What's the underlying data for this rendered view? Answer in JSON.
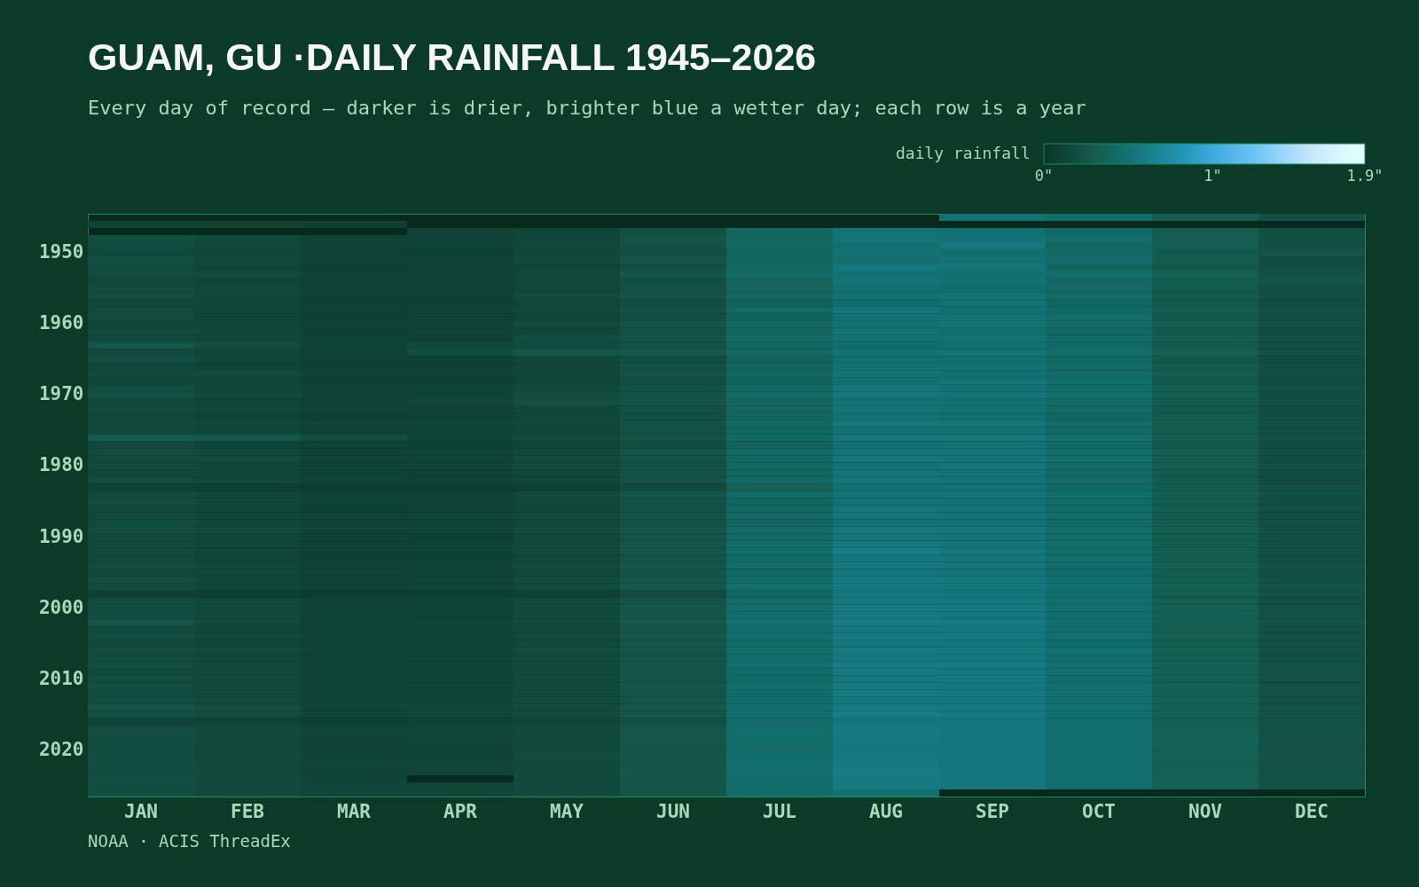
{
  "chart_data": {
    "type": "heatmap",
    "title": "GUAM, GU ·DAILY RAINFALL 1945–2026",
    "subtitle": "Every day of record — darker is drier, brighter blue a wetter day; each row is a year",
    "clabel": "daily rainfall",
    "annotations": [
      "NOAA · ACIS ThreadEx"
    ],
    "categories": [
      "JAN",
      "FEB",
      "MAR",
      "APR",
      "MAY",
      "JUN",
      "JUL",
      "AUG",
      "SEP",
      "OCT",
      "NOV",
      "DEC"
    ],
    "y_categories": [
      null,
      null,
      null,
      null,
      null,
      "1950",
      null,
      null,
      null,
      null,
      null,
      null,
      null,
      null,
      null,
      "1960",
      null,
      null,
      null,
      null,
      null,
      null,
      null,
      null,
      null,
      "1970",
      null,
      null,
      null,
      null,
      null,
      null,
      null,
      null,
      null,
      "1980",
      null,
      null,
      null,
      null,
      null,
      null,
      null,
      null,
      null,
      "1990",
      null,
      null,
      null,
      null,
      null,
      null,
      null,
      null,
      null,
      "2000",
      null,
      null,
      null,
      null,
      null,
      null,
      null,
      null,
      null,
      "2010",
      null,
      null,
      null,
      null,
      null,
      null,
      null,
      null,
      null,
      "2020",
      null,
      null,
      null,
      null,
      null,
      null
    ],
    "clim": [
      0,
      1.9
    ],
    "cticks": [
      {
        "value": 0,
        "label": "0\""
      },
      {
        "value": 1,
        "label": "1\""
      },
      {
        "value": 1.9,
        "label": "1.9\""
      }
    ],
    "cells": [
      [
        null,
        null,
        null,
        null,
        null,
        null,
        null,
        null,
        0.5,
        0.45,
        0.3,
        0.22
      ],
      [
        0.12,
        0.1,
        0.08,
        null,
        null,
        null,
        null,
        null,
        null,
        null,
        null,
        null
      ],
      [
        null,
        null,
        null,
        0.1,
        0.14,
        0.2,
        0.38,
        0.5,
        0.48,
        0.4,
        0.3,
        0.2
      ],
      [
        0.2,
        0.16,
        0.12,
        0.1,
        0.13,
        0.25,
        0.4,
        0.52,
        0.5,
        0.45,
        0.3,
        0.22
      ],
      [
        0.18,
        0.14,
        0.1,
        0.12,
        0.15,
        0.22,
        0.42,
        0.48,
        0.55,
        0.4,
        0.32,
        0.2
      ],
      [
        0.15,
        0.13,
        0.1,
        0.09,
        0.14,
        0.2,
        0.36,
        0.5,
        0.46,
        0.42,
        0.28,
        0.24
      ],
      [
        0.2,
        0.15,
        0.12,
        0.1,
        0.16,
        0.24,
        0.38,
        0.45,
        0.5,
        0.44,
        0.3,
        0.18
      ],
      [
        0.16,
        0.12,
        0.09,
        0.11,
        0.12,
        0.2,
        0.4,
        0.55,
        0.52,
        0.38,
        0.26,
        0.2
      ],
      [
        0.18,
        0.17,
        0.11,
        0.1,
        0.14,
        0.26,
        0.44,
        0.5,
        0.48,
        0.46,
        0.34,
        0.22
      ],
      [
        0.14,
        0.12,
        0.1,
        0.12,
        0.15,
        0.2,
        0.35,
        0.52,
        0.5,
        0.4,
        0.3,
        0.25
      ],
      [
        0.17,
        0.14,
        0.12,
        0.1,
        0.13,
        0.22,
        0.38,
        0.48,
        0.45,
        0.42,
        0.28,
        0.2
      ],
      [
        0.19,
        0.15,
        0.1,
        0.11,
        0.16,
        0.24,
        0.4,
        0.5,
        0.52,
        0.44,
        0.3,
        0.21
      ],
      [
        0.15,
        0.13,
        0.09,
        0.1,
        0.14,
        0.2,
        0.36,
        0.46,
        0.5,
        0.4,
        0.27,
        0.18
      ],
      [
        0.16,
        0.14,
        0.11,
        0.12,
        0.15,
        0.23,
        0.42,
        0.54,
        0.48,
        0.42,
        0.32,
        0.22
      ],
      [
        0.18,
        0.12,
        0.1,
        0.1,
        0.13,
        0.21,
        0.37,
        0.5,
        0.5,
        0.45,
        0.29,
        0.2
      ],
      [
        0.14,
        0.13,
        0.11,
        0.11,
        0.17,
        0.25,
        0.4,
        0.48,
        0.52,
        0.44,
        0.31,
        0.21
      ],
      [
        0.17,
        0.15,
        0.1,
        0.12,
        0.14,
        0.22,
        0.38,
        0.52,
        0.47,
        0.41,
        0.28,
        0.19
      ],
      [
        0.15,
        0.14,
        0.12,
        0.1,
        0.2,
        0.24,
        0.42,
        0.5,
        0.5,
        0.43,
        0.3,
        0.22
      ],
      [
        0.26,
        0.2,
        0.12,
        0.16,
        0.18,
        0.22,
        0.4,
        0.46,
        0.48,
        0.42,
        0.29,
        0.2
      ],
      [
        0.16,
        0.13,
        0.1,
        0.2,
        0.26,
        0.28,
        0.42,
        0.5,
        0.52,
        0.46,
        0.33,
        0.22
      ],
      [
        0.2,
        0.15,
        0.11,
        0.1,
        0.14,
        0.2,
        0.36,
        0.48,
        0.46,
        0.4,
        0.27,
        0.19
      ],
      [
        0.15,
        0.12,
        0.1,
        0.1,
        0.13,
        0.22,
        0.38,
        0.5,
        0.5,
        0.44,
        0.3,
        0.2
      ],
      [
        0.17,
        0.16,
        0.12,
        0.11,
        0.15,
        0.24,
        0.4,
        0.52,
        0.48,
        0.42,
        0.31,
        0.21
      ],
      [
        0.14,
        0.12,
        0.09,
        0.1,
        0.13,
        0.2,
        0.37,
        0.47,
        0.52,
        0.46,
        0.29,
        0.18
      ],
      [
        0.18,
        0.14,
        0.11,
        0.12,
        0.16,
        0.23,
        0.41,
        0.53,
        0.5,
        0.43,
        0.3,
        0.22
      ],
      [
        0.22,
        0.16,
        0.11,
        0.12,
        0.18,
        0.24,
        0.42,
        0.55,
        0.52,
        0.45,
        0.32,
        0.2
      ],
      [
        0.16,
        0.13,
        0.1,
        0.14,
        0.22,
        0.25,
        0.4,
        0.5,
        0.48,
        0.44,
        0.3,
        0.21
      ],
      [
        0.18,
        0.15,
        0.12,
        0.11,
        0.15,
        0.22,
        0.38,
        0.52,
        0.5,
        0.42,
        0.28,
        0.19
      ],
      [
        0.15,
        0.12,
        0.09,
        0.1,
        0.14,
        0.21,
        0.39,
        0.5,
        0.47,
        0.4,
        0.29,
        0.2
      ],
      [
        0.17,
        0.14,
        0.13,
        0.12,
        0.15,
        0.23,
        0.42,
        0.56,
        0.52,
        0.44,
        0.31,
        0.22
      ],
      [
        0.16,
        0.13,
        0.1,
        0.11,
        0.14,
        0.22,
        0.4,
        0.5,
        0.5,
        0.43,
        0.3,
        0.2
      ],
      [
        0.3,
        0.26,
        0.2,
        0.12,
        0.16,
        0.24,
        0.43,
        0.55,
        0.54,
        0.46,
        0.32,
        0.22
      ],
      [
        0.15,
        0.12,
        0.1,
        0.1,
        0.13,
        0.2,
        0.36,
        0.48,
        0.5,
        0.42,
        0.28,
        0.19
      ],
      [
        0.18,
        0.15,
        0.11,
        0.12,
        0.15,
        0.25,
        0.42,
        0.52,
        0.52,
        0.45,
        0.31,
        0.21
      ],
      [
        0.16,
        0.17,
        0.12,
        0.11,
        0.17,
        0.24,
        0.4,
        0.55,
        0.53,
        0.46,
        0.3,
        0.2
      ],
      [
        0.17,
        0.14,
        0.11,
        0.13,
        0.16,
        0.23,
        0.41,
        0.5,
        0.55,
        0.44,
        0.32,
        0.22
      ],
      [
        0.15,
        0.13,
        0.1,
        0.1,
        0.14,
        0.22,
        0.38,
        0.52,
        0.5,
        0.42,
        0.29,
        0.19
      ],
      [
        0.18,
        0.15,
        0.12,
        0.11,
        0.15,
        0.24,
        0.42,
        0.54,
        0.52,
        0.45,
        0.3,
        0.18
      ],
      [
        0.1,
        0.08,
        0.06,
        0.07,
        0.09,
        0.16,
        0.34,
        0.48,
        0.5,
        0.42,
        0.3,
        0.21
      ],
      [
        0.17,
        0.14,
        0.11,
        0.12,
        0.16,
        0.25,
        0.43,
        0.52,
        0.53,
        0.46,
        0.32,
        0.22
      ],
      [
        0.19,
        0.15,
        0.12,
        0.11,
        0.15,
        0.23,
        0.4,
        0.5,
        0.5,
        0.44,
        0.3,
        0.2
      ],
      [
        0.16,
        0.13,
        0.1,
        0.11,
        0.14,
        0.22,
        0.41,
        0.55,
        0.52,
        0.43,
        0.31,
        0.21
      ],
      [
        0.15,
        0.14,
        0.11,
        0.12,
        0.16,
        0.24,
        0.42,
        0.53,
        0.51,
        0.45,
        0.29,
        0.2
      ],
      [
        0.17,
        0.15,
        0.11,
        0.11,
        0.15,
        0.23,
        0.39,
        0.5,
        0.5,
        0.42,
        0.3,
        0.21
      ],
      [
        0.2,
        0.16,
        0.12,
        0.12,
        0.17,
        0.26,
        0.44,
        0.56,
        0.54,
        0.46,
        0.32,
        0.22
      ],
      [
        0.18,
        0.14,
        0.11,
        0.1,
        0.15,
        0.24,
        0.42,
        0.55,
        0.53,
        0.44,
        0.31,
        0.21
      ],
      [
        0.16,
        0.13,
        0.1,
        0.11,
        0.15,
        0.25,
        0.44,
        0.56,
        0.52,
        0.45,
        0.3,
        0.2
      ],
      [
        0.17,
        0.14,
        0.11,
        0.12,
        0.16,
        0.26,
        0.46,
        0.6,
        0.55,
        0.46,
        0.32,
        0.22
      ],
      [
        0.15,
        0.12,
        0.1,
        0.1,
        0.14,
        0.24,
        0.43,
        0.54,
        0.54,
        0.47,
        0.3,
        0.2
      ],
      [
        0.18,
        0.15,
        0.11,
        0.12,
        0.16,
        0.27,
        0.45,
        0.58,
        0.55,
        0.46,
        0.33,
        0.23
      ],
      [
        0.16,
        0.14,
        0.12,
        0.11,
        0.15,
        0.25,
        0.42,
        0.55,
        0.52,
        0.44,
        0.3,
        0.21
      ],
      [
        0.19,
        0.15,
        0.11,
        0.12,
        0.17,
        0.26,
        0.44,
        0.57,
        0.56,
        0.47,
        0.32,
        0.22
      ],
      [
        0.17,
        0.14,
        0.11,
        0.13,
        0.16,
        0.28,
        0.46,
        0.58,
        0.55,
        0.48,
        0.34,
        0.24
      ],
      [
        0.09,
        0.07,
        0.06,
        0.07,
        0.1,
        0.18,
        0.4,
        0.55,
        0.53,
        0.45,
        0.31,
        0.22
      ],
      [
        0.18,
        0.15,
        0.11,
        0.12,
        0.16,
        0.25,
        0.44,
        0.56,
        0.54,
        0.46,
        0.32,
        0.21
      ],
      [
        0.2,
        0.16,
        0.12,
        0.12,
        0.17,
        0.27,
        0.45,
        0.58,
        0.56,
        0.47,
        0.33,
        0.23
      ],
      [
        0.19,
        0.15,
        0.11,
        0.11,
        0.16,
        0.26,
        0.46,
        0.57,
        0.55,
        0.46,
        0.34,
        0.22
      ],
      [
        0.24,
        0.17,
        0.12,
        0.13,
        0.17,
        0.27,
        0.47,
        0.6,
        0.57,
        0.48,
        0.33,
        0.24
      ],
      [
        0.17,
        0.14,
        0.11,
        0.12,
        0.15,
        0.25,
        0.44,
        0.56,
        0.55,
        0.46,
        0.31,
        0.21
      ],
      [
        0.18,
        0.15,
        0.12,
        0.12,
        0.16,
        0.27,
        0.46,
        0.58,
        0.56,
        0.47,
        0.33,
        0.23
      ],
      [
        0.16,
        0.13,
        0.1,
        0.11,
        0.15,
        0.25,
        0.44,
        0.55,
        0.54,
        0.45,
        0.31,
        0.21
      ],
      [
        0.19,
        0.16,
        0.12,
        0.12,
        0.17,
        0.26,
        0.45,
        0.57,
        0.56,
        0.48,
        0.34,
        0.22
      ],
      [
        0.18,
        0.14,
        0.11,
        0.12,
        0.16,
        0.25,
        0.44,
        0.56,
        0.55,
        0.46,
        0.32,
        0.21
      ],
      [
        0.2,
        0.16,
        0.12,
        0.13,
        0.17,
        0.27,
        0.46,
        0.58,
        0.57,
        0.47,
        0.33,
        0.23
      ],
      [
        0.17,
        0.15,
        0.11,
        0.12,
        0.16,
        0.26,
        0.45,
        0.57,
        0.55,
        0.47,
        0.32,
        0.22
      ],
      [
        0.19,
        0.16,
        0.12,
        0.12,
        0.17,
        0.25,
        0.44,
        0.56,
        0.56,
        0.46,
        0.33,
        0.22
      ],
      [
        0.2,
        0.15,
        0.12,
        0.13,
        0.16,
        0.27,
        0.46,
        0.58,
        0.55,
        0.48,
        0.34,
        0.23
      ],
      [
        0.18,
        0.16,
        0.11,
        0.12,
        0.17,
        0.26,
        0.45,
        0.57,
        0.56,
        0.47,
        0.32,
        0.22
      ],
      [
        0.19,
        0.15,
        0.12,
        0.12,
        0.16,
        0.25,
        0.45,
        0.56,
        0.55,
        0.46,
        0.33,
        0.21
      ],
      [
        0.24,
        0.2,
        0.13,
        0.13,
        0.17,
        0.27,
        0.46,
        0.58,
        0.56,
        0.48,
        0.33,
        0.23
      ],
      [
        0.2,
        0.17,
        0.12,
        0.13,
        0.17,
        0.26,
        0.47,
        0.6,
        0.57,
        0.47,
        0.34,
        0.22
      ],
      [
        0.12,
        0.1,
        0.08,
        0.09,
        0.12,
        0.2,
        0.42,
        0.55,
        0.54,
        0.46,
        0.32,
        0.22
      ],
      [
        0.19,
        0.16,
        0.12,
        0.12,
        0.16,
        0.26,
        0.45,
        0.57,
        0.56,
        0.47,
        0.33,
        0.22
      ],
      [
        0.2,
        0.16,
        0.12,
        0.13,
        0.17,
        0.27,
        0.46,
        0.58,
        0.55,
        0.48,
        0.34,
        0.23
      ],
      [
        0.18,
        0.15,
        0.11,
        0.12,
        0.16,
        0.25,
        0.44,
        0.56,
        0.55,
        0.46,
        0.35,
        0.22
      ],
      [
        0.17,
        0.14,
        0.11,
        0.11,
        0.15,
        0.25,
        0.44,
        0.55,
        0.54,
        0.46,
        0.32,
        0.21
      ],
      [
        0.2,
        0.16,
        0.12,
        0.12,
        0.17,
        0.26,
        0.45,
        0.57,
        0.56,
        0.47,
        0.34,
        0.23
      ],
      [
        0.19,
        0.15,
        0.12,
        0.12,
        0.16,
        0.25,
        0.46,
        0.58,
        0.55,
        0.47,
        0.33,
        0.22
      ],
      [
        0.18,
        0.16,
        0.11,
        0.13,
        0.17,
        0.27,
        0.47,
        0.6,
        0.56,
        0.48,
        0.33,
        0.22
      ],
      [
        0.2,
        0.16,
        0.12,
        null,
        0.16,
        0.26,
        0.45,
        0.57,
        0.56,
        0.47,
        0.34,
        0.23
      ],
      [
        0.19,
        0.15,
        0.12,
        0.12,
        0.17,
        0.26,
        0.45,
        0.57,
        0.55,
        0.46,
        0.33,
        0.22
      ],
      [
        0.2,
        0.16,
        0.12,
        0.12,
        0.16,
        0.25,
        0.44,
        0.5,
        null,
        null,
        null,
        null
      ]
    ]
  }
}
